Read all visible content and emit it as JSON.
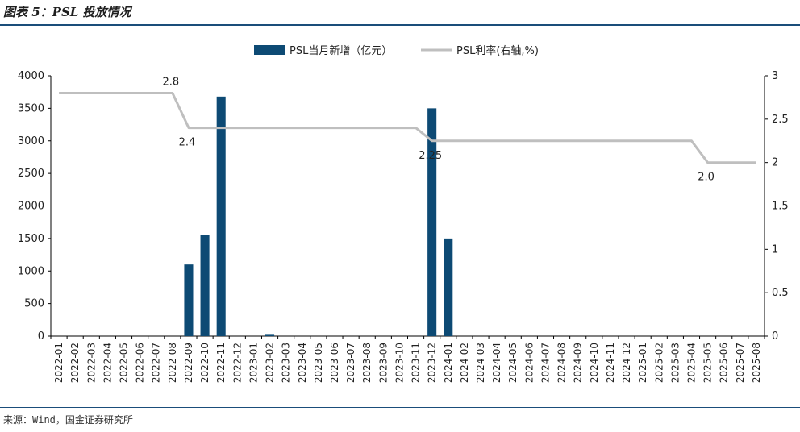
{
  "figure": {
    "title": "图表 5：PSL 投放情况",
    "source": "来源：Wind，国金证券研究所"
  },
  "colors": {
    "bar": "#0d4a74",
    "line": "#bfbfbf",
    "axis": "#000000"
  },
  "chart_data": {
    "type": "bar+line",
    "categories": [
      "2022-01",
      "2022-02",
      "2022-03",
      "2022-04",
      "2022-05",
      "2022-06",
      "2022-07",
      "2022-08",
      "2022-09",
      "2022-10",
      "2022-11",
      "2022-12",
      "2023-01",
      "2023-02",
      "2023-03",
      "2023-04",
      "2023-05",
      "2023-06",
      "2023-07",
      "2023-08",
      "2023-09",
      "2023-10",
      "2023-11",
      "2023-12",
      "2024-01",
      "2024-02",
      "2024-03",
      "2024-04",
      "2024-05",
      "2024-06",
      "2024-07",
      "2024-08",
      "2024-09",
      "2024-10",
      "2024-11",
      "2024-12",
      "2025-01",
      "2025-02",
      "2025-03",
      "2025-04",
      "2025-05",
      "2025-06",
      "2025-07",
      "2025-08"
    ],
    "series": [
      {
        "name": "PSL当月新增（亿元）",
        "type": "bar",
        "axis": "left",
        "values": [
          0,
          0,
          0,
          0,
          0,
          0,
          0,
          0,
          1100,
          1550,
          3680,
          0,
          0,
          20,
          0,
          0,
          0,
          0,
          0,
          0,
          0,
          0,
          0,
          3500,
          1500,
          0,
          0,
          0,
          0,
          0,
          0,
          0,
          0,
          0,
          0,
          0,
          0,
          0,
          0,
          0,
          0,
          0,
          0,
          0
        ]
      },
      {
        "name": "PSL利率(右轴,%)",
        "type": "line",
        "axis": "right",
        "values": [
          2.8,
          2.8,
          2.8,
          2.8,
          2.8,
          2.8,
          2.8,
          2.8,
          2.4,
          2.4,
          2.4,
          2.4,
          2.4,
          2.4,
          2.4,
          2.4,
          2.4,
          2.4,
          2.4,
          2.4,
          2.4,
          2.4,
          2.4,
          2.25,
          2.25,
          2.25,
          2.25,
          2.25,
          2.25,
          2.25,
          2.25,
          2.25,
          2.25,
          2.25,
          2.25,
          2.25,
          2.25,
          2.25,
          2.25,
          2.25,
          2.0,
          2.0,
          2.0,
          2.0
        ]
      }
    ],
    "annotations": [
      {
        "text": "2.8",
        "index": 7,
        "value": 2.8,
        "pos": "above"
      },
      {
        "text": "2.4",
        "index": 8,
        "value": 2.4,
        "pos": "below"
      },
      {
        "text": "2.25",
        "index": 23,
        "value": 2.25,
        "pos": "below"
      },
      {
        "text": "2.0",
        "index": 40,
        "value": 2.0,
        "pos": "below"
      }
    ],
    "y_left": {
      "min": 0,
      "max": 4000,
      "ticks": [
        "0",
        "500",
        "1000",
        "1500",
        "2000",
        "2500",
        "3000",
        "3500",
        "4000"
      ]
    },
    "y_right": {
      "min": 0,
      "max": 3,
      "ticks": [
        "0",
        "0.5",
        "1",
        "1.5",
        "2",
        "2.5",
        "3"
      ]
    },
    "legend": "top-center",
    "grid": false
  }
}
